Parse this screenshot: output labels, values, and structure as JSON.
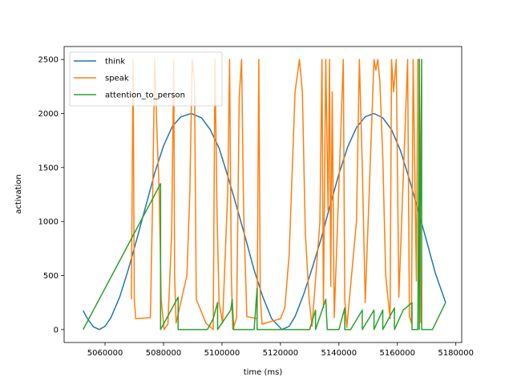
{
  "chart_data": {
    "type": "line",
    "xlabel": "time (ms)",
    "ylabel": "activation",
    "xlim": [
      5046000,
      5182000
    ],
    "ylim": [
      -120,
      2620
    ],
    "xticks": [
      5060000,
      5080000,
      5100000,
      5120000,
      5140000,
      5160000,
      5180000
    ],
    "xtick_labels": [
      "5060000",
      "5080000",
      "5100000",
      "5120000",
      "5140000",
      "5160000",
      "5180000"
    ],
    "yticks": [
      0,
      500,
      1000,
      1500,
      2000,
      2500
    ],
    "ytick_labels": [
      "0",
      "500",
      "1000",
      "1500",
      "2000",
      "2500"
    ],
    "grid": false,
    "legend_position": "top-left",
    "series": [
      {
        "name": "think",
        "color": "#1f77b4",
        "x": [
          5052500,
          5054000,
          5056000,
          5058000,
          5060000,
          5062000,
          5065000,
          5068000,
          5071000,
          5074000,
          5077000,
          5080000,
          5083000,
          5086000,
          5089500,
          5093000,
          5096000,
          5099000,
          5102000,
          5105000,
          5108000,
          5111000,
          5114000,
          5117000,
          5120500,
          5123000,
          5125000,
          5128000,
          5131000,
          5134000,
          5137000,
          5140000,
          5143000,
          5146000,
          5149000,
          5152000,
          5155000,
          5158000,
          5161000,
          5164000,
          5167000,
          5170000,
          5173000,
          5176500
        ],
        "y": [
          175,
          100,
          25,
          0,
          30,
          110,
          300,
          560,
          850,
          1150,
          1450,
          1700,
          1880,
          1970,
          2000,
          1960,
          1850,
          1680,
          1420,
          1140,
          850,
          550,
          300,
          100,
          0,
          30,
          120,
          330,
          580,
          850,
          1150,
          1440,
          1690,
          1870,
          1970,
          2000,
          1960,
          1850,
          1660,
          1400,
          1110,
          820,
          520,
          250
        ]
      },
      {
        "name": "speak",
        "color": "#ff7f0e",
        "x": [
          5069000,
          5069600,
          5070000,
          5070500,
          5075500,
          5076200,
          5077000,
          5077800,
          5078500,
          5079200,
          5080200,
          5081500,
          5082800,
          5083500,
          5083800,
          5084300,
          5088000,
          5089000,
          5089800,
          5090600,
          5091200,
          5094500,
          5097000,
          5097600,
          5098300,
          5099000,
          5100200,
          5102000,
          5102600,
          5103200,
          5103700,
          5105000,
          5105900,
          5106700,
          5107400,
          5108500,
          5112000,
          5112600,
          5113100,
          5113700,
          5120000,
          5121500,
          5123000,
          5125000,
          5126500,
          5127500,
          5128500,
          5129800,
          5130800,
          5133500,
          5134200,
          5134700,
          5135500,
          5136300,
          5136800,
          5137200,
          5137700,
          5138400,
          5141500,
          5142000,
          5142700,
          5146000,
          5147000,
          5148000,
          5149000,
          5152000,
          5152600,
          5153300,
          5154000,
          5155000,
          5156000,
          5157500,
          5158000,
          5158700,
          5159600,
          5160500,
          5163500,
          5164100,
          5164800,
          5165400,
          5166500,
          5167000,
          5167500,
          5168000
        ],
        "y": [
          280,
          2500,
          280,
          100,
          110,
          1100,
          2500,
          1800,
          1300,
          280,
          0,
          50,
          900,
          2500,
          500,
          60,
          500,
          1270,
          2500,
          2280,
          280,
          60,
          0,
          2500,
          1100,
          250,
          60,
          1300,
          2500,
          500,
          0,
          110,
          2150,
          2500,
          1100,
          120,
          100,
          2500,
          300,
          50,
          100,
          200,
          700,
          2200,
          2500,
          2200,
          900,
          280,
          30,
          1000,
          2500,
          200,
          2500,
          1100,
          2500,
          400,
          2200,
          110,
          2500,
          280,
          20,
          1000,
          2500,
          1500,
          250,
          2500,
          2400,
          2500,
          2300,
          1600,
          500,
          100,
          2500,
          2200,
          2500,
          300,
          2500,
          120,
          60,
          2500,
          450,
          2500,
          2500,
          60
        ]
      },
      {
        "name": "attention_to_person",
        "color": "#2ca02c",
        "x": [
          5052500,
          5079000,
          5079000,
          5085000,
          5085000,
          5087000,
          5089000,
          5091000,
          5091000,
          5095000,
          5097000,
          5098500,
          5098500,
          5103000,
          5103500,
          5104000,
          5104000,
          5111000,
          5112000,
          5112000,
          5114000,
          5114000,
          5118000,
          5121000,
          5121000,
          5124000,
          5124000,
          5128000,
          5128000,
          5130000,
          5130000,
          5132000,
          5132000,
          5135500,
          5136000,
          5136000,
          5140000,
          5142000,
          5142000,
          5144000,
          5144000,
          5148000,
          5148000,
          5152000,
          5152000,
          5155000,
          5155000,
          5159000,
          5159000,
          5162000,
          5165000,
          5165000,
          5167000,
          5167500,
          5167500,
          5168300,
          5168300,
          5170000,
          5172000,
          5176500
        ],
        "y": [
          0,
          1350,
          0,
          300,
          0,
          0,
          0,
          0,
          0,
          0,
          100,
          250,
          0,
          180,
          280,
          0,
          0,
          0,
          380,
          0,
          0,
          0,
          0,
          0,
          0,
          0,
          0,
          0,
          0,
          0,
          0,
          180,
          0,
          280,
          0,
          0,
          0,
          200,
          0,
          0,
          0,
          180,
          0,
          180,
          0,
          180,
          0,
          200,
          0,
          180,
          250,
          0,
          0,
          2500,
          0,
          2500,
          0,
          0,
          0,
          250
        ]
      }
    ]
  }
}
